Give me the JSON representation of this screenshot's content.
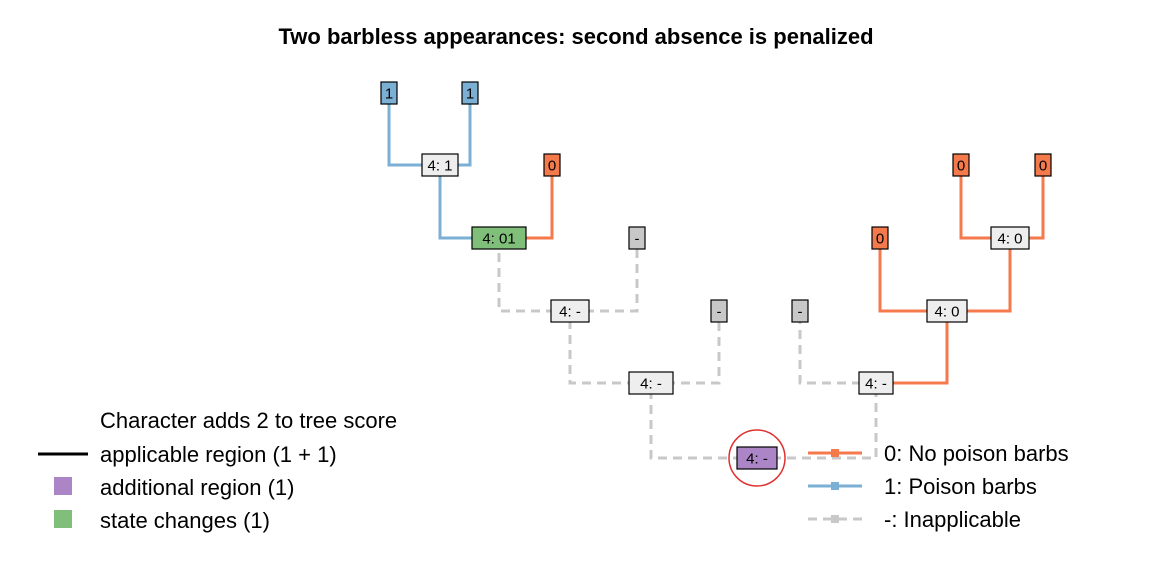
{
  "title": "Two barbless appearances: second absence is penalized",
  "colors": {
    "state0": "#F47A4C",
    "state1": "#7BAFD4",
    "inapplicable": "#C8C8C8",
    "additional": "#AC85C6",
    "state_change": "#80BF7A",
    "internal": "#EEEEEE",
    "highlight_circle": "#E03030"
  },
  "tips": [
    {
      "id": "t1",
      "label": "1",
      "state": "1"
    },
    {
      "id": "t2",
      "label": "1",
      "state": "1"
    },
    {
      "id": "t3",
      "label": "0",
      "state": "0"
    },
    {
      "id": "t4",
      "label": "-",
      "state": "-"
    },
    {
      "id": "t5",
      "label": "-",
      "state": "-"
    },
    {
      "id": "t6",
      "label": "-",
      "state": "-"
    },
    {
      "id": "t7",
      "label": "0",
      "state": "0"
    },
    {
      "id": "t8",
      "label": "0",
      "state": "0"
    },
    {
      "id": "t9",
      "label": "0",
      "state": "0"
    }
  ],
  "internal_nodes": [
    {
      "id": "n1",
      "label": "4: 1",
      "kind": "internal"
    },
    {
      "id": "n2",
      "label": "4: 01",
      "kind": "state_change"
    },
    {
      "id": "n3",
      "label": "4: -",
      "kind": "internal"
    },
    {
      "id": "n4",
      "label": "4: -",
      "kind": "internal"
    },
    {
      "id": "n5",
      "label": "4: -",
      "kind": "additional"
    },
    {
      "id": "n6",
      "label": "4: 0",
      "kind": "internal"
    },
    {
      "id": "n7",
      "label": "4: 0",
      "kind": "internal"
    },
    {
      "id": "n8",
      "label": "4: -",
      "kind": "internal"
    }
  ],
  "legend_left": {
    "heading": "Character adds 2 to tree score",
    "items": [
      {
        "label": "applicable region (1 + 1)",
        "symbol": "line"
      },
      {
        "label": "additional region (1)",
        "symbol": "additional"
      },
      {
        "label": "state changes (1)",
        "symbol": "state_change"
      }
    ]
  },
  "legend_right": {
    "items": [
      {
        "label": "0: No poison barbs",
        "state": "0"
      },
      {
        "label": "1: Poison barbs",
        "state": "1"
      },
      {
        "label": "-: Inapplicable",
        "state": "-"
      }
    ]
  }
}
